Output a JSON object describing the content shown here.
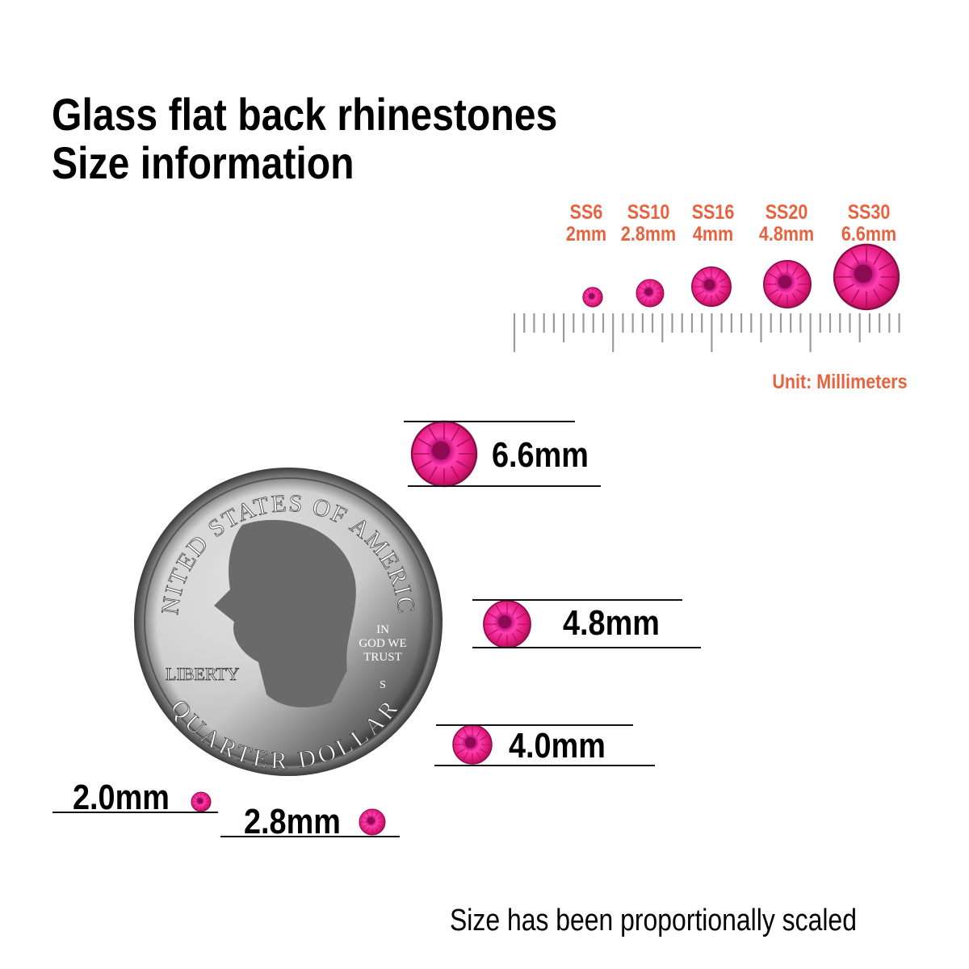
{
  "title": {
    "line1": "Glass flat back rhinestones",
    "line2": "Size information"
  },
  "size_chart": {
    "items": [
      {
        "code": "SS6",
        "size": "2mm",
        "mm": 2
      },
      {
        "code": "SS10",
        "size": "2.8mm",
        "mm": 2.8
      },
      {
        "code": "SS16",
        "size": "4mm",
        "mm": 4
      },
      {
        "code": "SS20",
        "size": "4.8mm",
        "mm": 4.8
      },
      {
        "code": "SS30",
        "size": "6.6mm",
        "mm": 6.6
      }
    ],
    "unit_label": "Unit: Millimeters",
    "ruler_mm": 40
  },
  "comparison": {
    "labels": [
      "6.6mm",
      "4.8mm",
      "4.0mm",
      "2.0mm",
      "2.8mm"
    ],
    "coin": {
      "top_text": "UNITED STATES OF AMERICA",
      "bottom_text": "QUARTER DOLLAR",
      "left_text": "LIBERTY",
      "motto": [
        "IN",
        "GOD WE",
        "TRUST"
      ],
      "mint": "S"
    }
  },
  "footer": "Size has been proportionally scaled",
  "colors": {
    "accent": "#e8623e",
    "gem": "#e0187a",
    "text": "#000000",
    "ruler": "#9a9a9a"
  }
}
